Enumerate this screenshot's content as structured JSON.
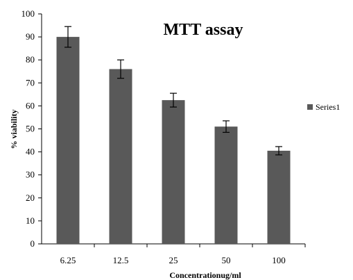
{
  "chart_data": {
    "type": "bar",
    "title": "MTT assay",
    "xlabel": "Concentrationug/ml",
    "ylabel": "% viability",
    "categories": [
      "6.25",
      "12.5",
      "25",
      "50",
      "100"
    ],
    "series": [
      {
        "name": "Series1",
        "values": [
          90,
          76,
          62.5,
          51,
          40.5
        ],
        "errors": [
          4.5,
          4,
          3,
          2.5,
          1.8
        ]
      }
    ],
    "ylim": [
      0,
      100
    ],
    "yticks": [
      "0",
      "10",
      "20",
      "30",
      "40",
      "50",
      "60",
      "70",
      "80",
      "90",
      "100"
    ],
    "grid": false,
    "legend_position": "right",
    "bar_color": "#595959"
  }
}
